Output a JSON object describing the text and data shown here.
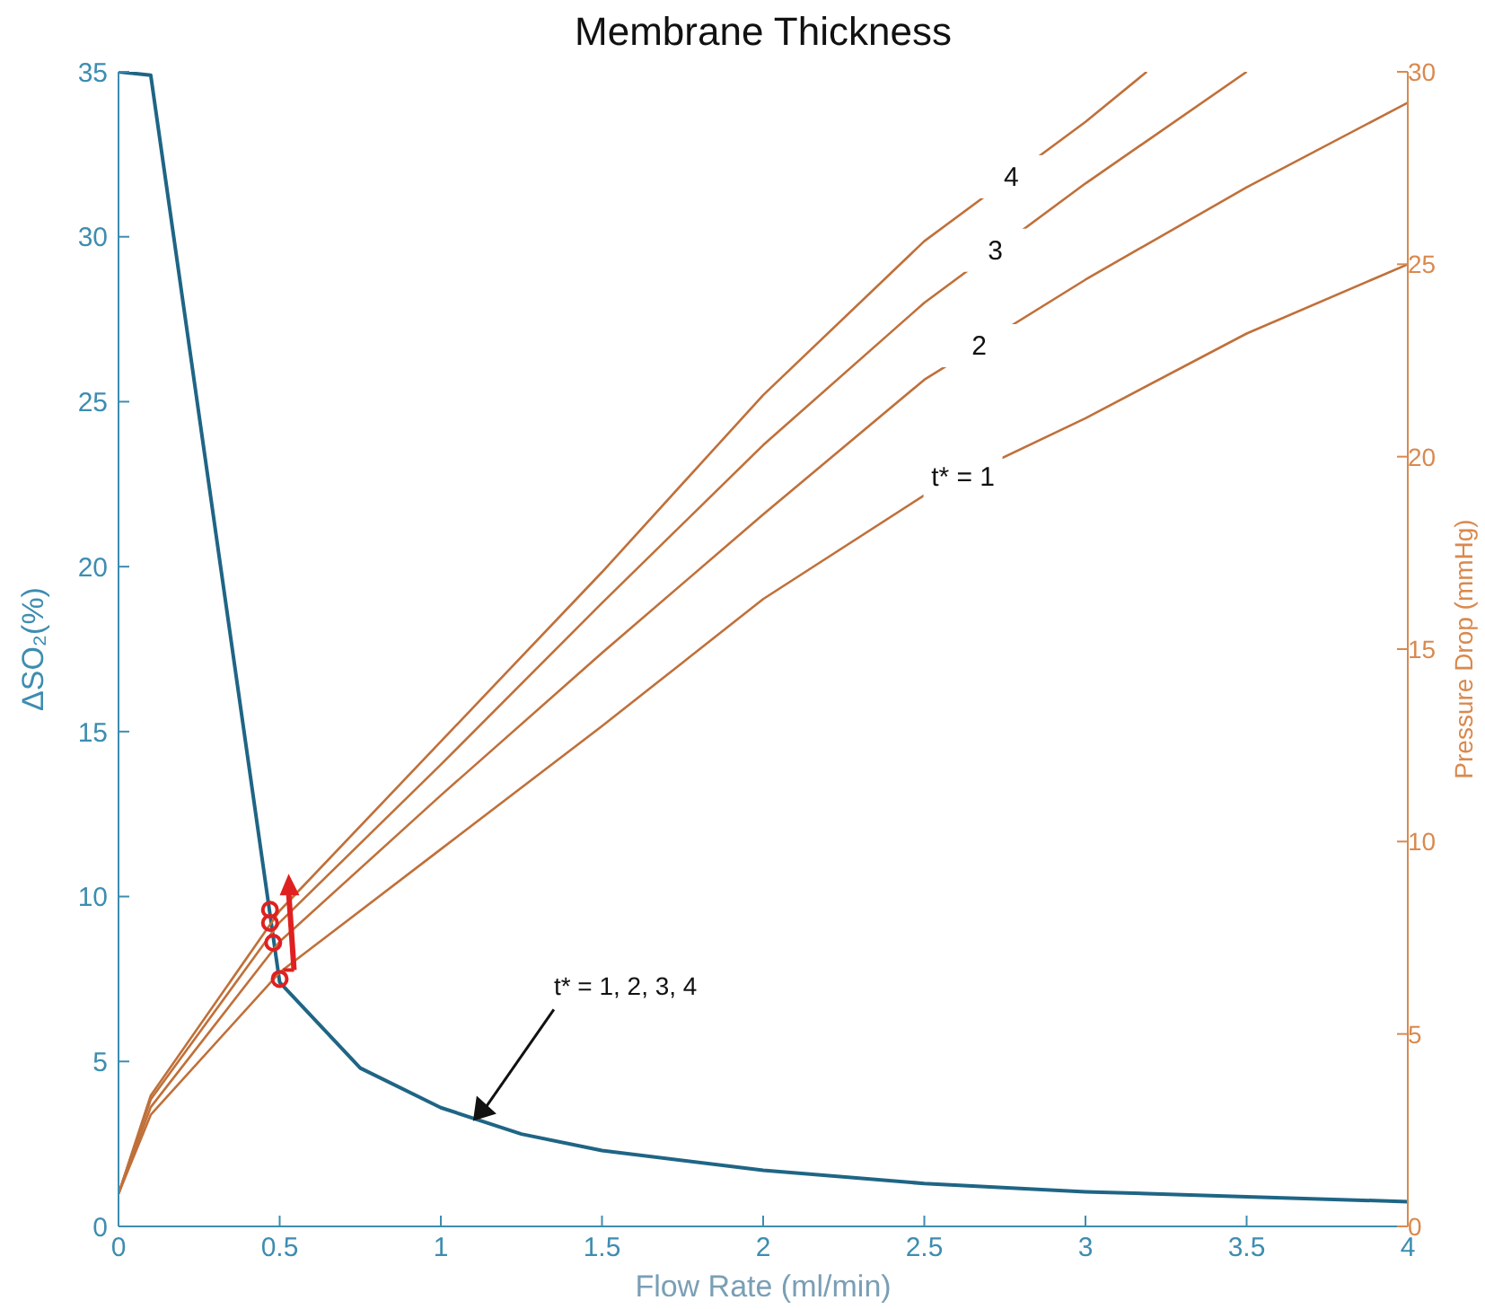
{
  "chart_data": {
    "type": "line",
    "title": "Membrane Thickness",
    "xlabel": "Flow Rate (ml/min)",
    "ylabel": "ΔSO₂(%)",
    "y2label": "Pressure Drop (mmHg)",
    "xlim": [
      0,
      4
    ],
    "xticks": [
      0,
      0.5,
      1,
      1.5,
      2,
      2.5,
      3,
      3.5,
      4
    ],
    "ylim": [
      0,
      35
    ],
    "yticks": [
      0,
      5,
      10,
      15,
      20,
      25,
      30,
      35
    ],
    "y2lim": [
      0,
      30
    ],
    "y2ticks": [
      0,
      5,
      10,
      15,
      20,
      25,
      30
    ],
    "marker": "none",
    "series": [
      {
        "color": "#1f6585",
        "x": [
          0,
          0.1,
          0.5,
          0.75,
          1,
          1.25,
          1.5,
          2,
          2.5,
          3,
          3.5,
          4
        ],
        "values": [
          35,
          34.9,
          7.4,
          4.8,
          3.6,
          2.8,
          2.3,
          1.7,
          1.3,
          1.05,
          0.9,
          0.75
        ]
      },
      {
        "name": "t* = 1",
        "axis": "y2",
        "color": "#c0703a",
        "x": [
          0,
          0.1,
          0.5,
          1,
          1.5,
          2,
          2.5,
          3,
          3.5,
          4
        ],
        "values": [
          0.85,
          2.9,
          6.6,
          9.8,
          13,
          16.3,
          19,
          21,
          23.2,
          25
        ]
      },
      {
        "name": "2",
        "axis": "y2",
        "color": "#c0703a",
        "x": [
          0,
          0.1,
          0.5,
          1,
          1.5,
          2,
          2.5,
          3,
          3.5,
          4
        ],
        "values": [
          0.85,
          3.1,
          7.4,
          11.2,
          14.9,
          18.5,
          22,
          24.6,
          27,
          29.2
        ]
      },
      {
        "name": "3",
        "axis": "y2",
        "color": "#c0703a",
        "x": [
          0,
          0.1,
          0.5,
          1,
          1.5,
          2,
          2.5,
          3,
          3.5
        ],
        "values": [
          0.85,
          3.3,
          7.9,
          12,
          16.2,
          20.3,
          24,
          27.1,
          30
        ]
      },
      {
        "name": "4",
        "axis": "y2",
        "color": "#c0703a",
        "x": [
          0,
          0.1,
          0.5,
          1,
          1.5,
          2,
          2.5,
          3,
          3.19
        ],
        "values": [
          0.85,
          3.4,
          8.2,
          12.6,
          17,
          21.6,
          25.6,
          28.7,
          30
        ]
      },
      {
        "type": "scatter",
        "color": "#e02020",
        "marker": "circle",
        "x": [
          0.47,
          0.47,
          0.48,
          0.5
        ],
        "values": [
          9.6,
          9.2,
          8.6,
          7.5
        ]
      }
    ],
    "annotations": [
      {
        "text": "t* = 1, 2, 3, 4",
        "x": 1.1,
        "y": 3.2
      }
    ]
  }
}
